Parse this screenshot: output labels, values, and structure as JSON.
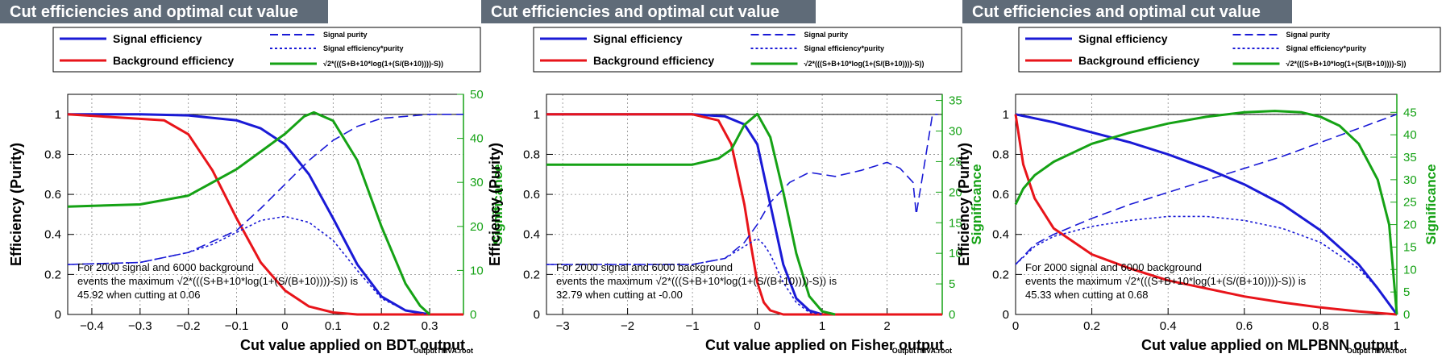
{
  "footer_label": "OutputTMVA.root",
  "colors": {
    "signal": "#1a1ad6",
    "background": "#e8141a",
    "significance": "#15a215",
    "title_bg": "#5f6b78",
    "axis": "#000000"
  },
  "legend": {
    "signal_efficiency": "Signal efficiency",
    "background_efficiency": "Background efficiency",
    "signal_purity": "Signal purity",
    "signal_eff_purity": "Signal efficiency*purity",
    "significance_formula": "√2*(((S+B+10*log(1+(S/(B+10))))-S))"
  },
  "chart_data": [
    {
      "type": "line",
      "title": "Cut efficiencies and optimal cut value",
      "xlabel": "Cut value applied on BDT output",
      "ylabel": "Efficiency (Purity)",
      "ylabel_right": "Significance",
      "xlim": [
        -0.45,
        0.37
      ],
      "ylim": [
        0,
        1.1
      ],
      "y2lim": [
        0,
        50
      ],
      "xticks": [
        -0.4,
        -0.3,
        -0.2,
        -0.1,
        0,
        0.1,
        0.2,
        0.3
      ],
      "xtick_labels": [
        "−0.4",
        "−0.3",
        "−0.2",
        "−0.1",
        "0",
        "0.1",
        "0.2",
        "0.3"
      ],
      "yticks": [
        0,
        0.2,
        0.4,
        0.6,
        0.8,
        1
      ],
      "ytick_labels": [
        "0",
        "0.2",
        "0.4",
        "0.6",
        "0.8",
        "1"
      ],
      "y2ticks": [
        0,
        10,
        20,
        30,
        40,
        50
      ],
      "y2tick_labels": [
        "0",
        "10",
        "20",
        "30",
        "40",
        "50"
      ],
      "grid": true,
      "legend_position": "top",
      "annotation": [
        "For 2000 signal and 6000 background",
        "events the maximum √2*(((S+B+10*log(1+(S/(B+10))))-S)) is",
        "45.92 when cutting at  0.06"
      ],
      "series": [
        {
          "name": "Signal efficiency",
          "axis": "left",
          "style": "solid",
          "x": [
            -0.45,
            -0.3,
            -0.2,
            -0.1,
            -0.05,
            0,
            0.05,
            0.1,
            0.15,
            0.2,
            0.25,
            0.3,
            0.37
          ],
          "y": [
            1.0,
            1.0,
            0.995,
            0.97,
            0.93,
            0.85,
            0.7,
            0.48,
            0.25,
            0.09,
            0.02,
            0.0,
            0.0
          ]
        },
        {
          "name": "Background efficiency",
          "axis": "left",
          "style": "solid",
          "x": [
            -0.45,
            -0.25,
            -0.2,
            -0.15,
            -0.1,
            -0.05,
            0,
            0.05,
            0.1,
            0.15,
            0.2,
            0.37
          ],
          "y": [
            1.0,
            0.97,
            0.9,
            0.72,
            0.48,
            0.26,
            0.12,
            0.04,
            0.01,
            0.0,
            0.0,
            0.0
          ]
        },
        {
          "name": "Signal purity",
          "axis": "left",
          "style": "dashed",
          "x": [
            -0.45,
            -0.3,
            -0.2,
            -0.1,
            -0.05,
            0,
            0.05,
            0.1,
            0.15,
            0.2,
            0.3,
            0.37
          ],
          "y": [
            0.25,
            0.26,
            0.31,
            0.42,
            0.53,
            0.65,
            0.77,
            0.87,
            0.94,
            0.98,
            1.0,
            1.0
          ]
        },
        {
          "name": "Signal efficiency*purity",
          "axis": "left",
          "style": "dotted",
          "x": [
            -0.45,
            -0.3,
            -0.2,
            -0.15,
            -0.1,
            -0.05,
            0,
            0.05,
            0.1,
            0.15,
            0.2,
            0.25,
            0.3
          ],
          "y": [
            0.25,
            0.26,
            0.31,
            0.35,
            0.41,
            0.47,
            0.49,
            0.46,
            0.37,
            0.22,
            0.08,
            0.02,
            0.0
          ]
        },
        {
          "name": "√2*(((S+B+10*log(1+(S/(B+10))))-S))",
          "axis": "right",
          "style": "solid",
          "x": [
            -0.45,
            -0.3,
            -0.2,
            -0.1,
            -0.05,
            0,
            0.04,
            0.06,
            0.1,
            0.15,
            0.2,
            0.25,
            0.28,
            0.3
          ],
          "y": [
            24.5,
            25,
            27,
            33,
            37,
            41,
            45,
            45.9,
            44,
            35,
            20,
            7,
            2,
            0
          ]
        }
      ]
    },
    {
      "type": "line",
      "title": "Cut efficiencies and optimal cut value",
      "xlabel": "Cut value applied on Fisher output",
      "ylabel": "Efficiency (Purity)",
      "ylabel_right": "Significance",
      "xlim": [
        -3.25,
        2.85
      ],
      "ylim": [
        0,
        1.1
      ],
      "y2lim": [
        0,
        36
      ],
      "xticks": [
        -3,
        -2,
        -1,
        0,
        1,
        2
      ],
      "xtick_labels": [
        "−3",
        "−2",
        "−1",
        "0",
        "1",
        "2"
      ],
      "yticks": [
        0,
        0.2,
        0.4,
        0.6,
        0.8,
        1
      ],
      "ytick_labels": [
        "0",
        "0.2",
        "0.4",
        "0.6",
        "0.8",
        "1"
      ],
      "y2ticks": [
        0,
        5,
        10,
        15,
        20,
        25,
        30,
        35
      ],
      "y2tick_labels": [
        "0",
        "5",
        "10",
        "15",
        "20",
        "25",
        "30",
        "35"
      ],
      "grid": true,
      "legend_position": "top",
      "annotation": [
        "For 2000 signal and 6000 background",
        "events the maximum √2*(((S+B+10*log(1+(S/(B+10))))-S)) is",
        "32.79 when cutting at -0.00"
      ],
      "series": [
        {
          "name": "Signal efficiency",
          "axis": "left",
          "style": "solid",
          "x": [
            -3.25,
            -1,
            -0.5,
            -0.2,
            0,
            0.2,
            0.4,
            0.6,
            0.8,
            1.0,
            2.85
          ],
          "y": [
            1.0,
            1.0,
            0.99,
            0.95,
            0.85,
            0.55,
            0.25,
            0.08,
            0.02,
            0.0,
            0.0
          ]
        },
        {
          "name": "Background efficiency",
          "axis": "left",
          "style": "solid",
          "x": [
            -3.25,
            -1,
            -0.6,
            -0.4,
            -0.2,
            -0.1,
            0,
            0.1,
            0.2,
            0.4,
            2.85
          ],
          "y": [
            1.0,
            1.0,
            0.97,
            0.85,
            0.55,
            0.35,
            0.16,
            0.06,
            0.02,
            0.0,
            0.0
          ]
        },
        {
          "name": "Signal purity",
          "axis": "left",
          "style": "dashed",
          "x": [
            -3.25,
            -1,
            -0.5,
            -0.2,
            0,
            0.2,
            0.5,
            0.8,
            1.2,
            1.6,
            2.0,
            2.2,
            2.4,
            2.45,
            2.5,
            2.55,
            2.6,
            2.7,
            2.78
          ],
          "y": [
            0.25,
            0.25,
            0.28,
            0.36,
            0.45,
            0.56,
            0.66,
            0.71,
            0.69,
            0.72,
            0.76,
            0.73,
            0.66,
            0.5,
            0.6,
            0.7,
            0.8,
            1.0,
            1.0
          ]
        },
        {
          "name": "Signal efficiency*purity",
          "axis": "left",
          "style": "dotted",
          "x": [
            -3.25,
            -1,
            -0.5,
            -0.2,
            0,
            0.1,
            0.2,
            0.4,
            0.6,
            0.8,
            1.0
          ],
          "y": [
            0.25,
            0.25,
            0.28,
            0.34,
            0.38,
            0.35,
            0.3,
            0.16,
            0.06,
            0.01,
            0.0
          ]
        },
        {
          "name": "√2*(((S+B+10*log(1+(S/(B+10))))-S))",
          "axis": "right",
          "style": "solid",
          "x": [
            -3.25,
            -1,
            -0.6,
            -0.4,
            -0.2,
            0,
            0.2,
            0.4,
            0.6,
            0.8,
            1.0,
            1.2
          ],
          "y": [
            24.5,
            24.5,
            25.5,
            27,
            31,
            32.8,
            29,
            20,
            10,
            3,
            0.5,
            0
          ]
        }
      ]
    },
    {
      "type": "line",
      "title": "Cut efficiencies and optimal cut value",
      "xlabel": "Cut value applied on MLPBNN output",
      "ylabel": "Efficiency (Purity)",
      "ylabel_right": "Significance",
      "xlim": [
        0,
        1
      ],
      "ylim": [
        0,
        1.1
      ],
      "y2lim": [
        0,
        49
      ],
      "xticks": [
        0,
        0.2,
        0.4,
        0.6,
        0.8,
        1
      ],
      "xtick_labels": [
        "0",
        "0.2",
        "0.4",
        "0.6",
        "0.8",
        "1"
      ],
      "yticks": [
        0,
        0.2,
        0.4,
        0.6,
        0.8,
        1
      ],
      "ytick_labels": [
        "0",
        "0.2",
        "0.4",
        "0.6",
        "0.8",
        "1"
      ],
      "y2ticks": [
        0,
        5,
        10,
        15,
        20,
        25,
        30,
        35,
        40,
        45
      ],
      "y2tick_labels": [
        "0",
        "5",
        "10",
        "15",
        "20",
        "25",
        "30",
        "35",
        "40",
        "45"
      ],
      "grid": true,
      "legend_position": "top",
      "annotation": [
        "For 2000 signal and 6000 background",
        "events the maximum √2*(((S+B+10*log(1+(S/(B+10))))-S)) is",
        "45.33 when cutting at  0.68"
      ],
      "series": [
        {
          "name": "Signal efficiency",
          "axis": "left",
          "style": "solid",
          "x": [
            0,
            0.1,
            0.2,
            0.3,
            0.4,
            0.5,
            0.6,
            0.7,
            0.8,
            0.9,
            0.95,
            1.0
          ],
          "y": [
            1.0,
            0.96,
            0.91,
            0.86,
            0.8,
            0.73,
            0.65,
            0.55,
            0.42,
            0.25,
            0.13,
            0.0
          ]
        },
        {
          "name": "Background efficiency",
          "axis": "left",
          "style": "solid",
          "x": [
            0,
            0.02,
            0.05,
            0.1,
            0.2,
            0.3,
            0.4,
            0.5,
            0.6,
            0.7,
            0.8,
            0.9,
            1.0
          ],
          "y": [
            1.0,
            0.75,
            0.58,
            0.43,
            0.3,
            0.23,
            0.17,
            0.13,
            0.09,
            0.06,
            0.035,
            0.015,
            0.0
          ]
        },
        {
          "name": "Signal purity",
          "axis": "left",
          "style": "dashed",
          "x": [
            0,
            0.05,
            0.1,
            0.2,
            0.3,
            0.4,
            0.5,
            0.6,
            0.7,
            0.8,
            0.9,
            1.0
          ],
          "y": [
            0.25,
            0.35,
            0.4,
            0.48,
            0.55,
            0.61,
            0.67,
            0.73,
            0.79,
            0.86,
            0.93,
            1.0
          ]
        },
        {
          "name": "Signal efficiency*purity",
          "axis": "left",
          "style": "dotted",
          "x": [
            0,
            0.05,
            0.1,
            0.2,
            0.3,
            0.4,
            0.5,
            0.6,
            0.7,
            0.8,
            0.9,
            0.95,
            1.0
          ],
          "y": [
            0.25,
            0.34,
            0.39,
            0.44,
            0.47,
            0.49,
            0.49,
            0.47,
            0.43,
            0.36,
            0.23,
            0.13,
            0.0
          ]
        },
        {
          "name": "√2*(((S+B+10*log(1+(S/(B+10))))-S))",
          "axis": "right",
          "style": "solid",
          "x": [
            0,
            0.02,
            0.05,
            0.1,
            0.2,
            0.3,
            0.4,
            0.5,
            0.6,
            0.68,
            0.75,
            0.8,
            0.85,
            0.9,
            0.95,
            0.98,
            1.0
          ],
          "y": [
            24.5,
            28,
            31,
            34,
            38,
            40.5,
            42.5,
            44,
            45,
            45.3,
            45,
            44,
            42,
            38,
            30,
            20,
            0
          ]
        }
      ]
    }
  ]
}
